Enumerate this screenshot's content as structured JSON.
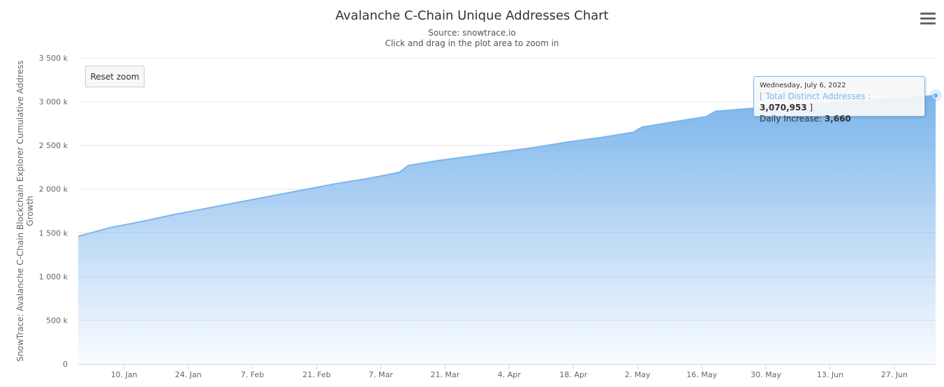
{
  "header": {
    "title": "Avalanche C-Chain Unique Addresses Chart",
    "source": "Source: snowtrace.io",
    "hint": "Click and drag in the plot area to zoom in"
  },
  "controls": {
    "reset_zoom_label": "Reset zoom",
    "menu_icon": "hamburger-menu-icon"
  },
  "colors": {
    "series": "#7cb5ec",
    "grid": "#e6e6e6"
  },
  "tooltip": {
    "date": "Wednesday, July 6, 2022",
    "open_bracket": "[ ",
    "series_label": "Total Distinct Addresses : ",
    "value": "3,070,953",
    "close_bracket": " ]",
    "daily_label": "Daily Increase: ",
    "daily_value": "3,660"
  },
  "chart_data": {
    "type": "area",
    "title": "Avalanche C-Chain Unique Addresses Chart",
    "subtitle": "Source: snowtrace.io",
    "xlabel": "",
    "ylabel": "SnowTrace: Avalanche C-Chain Blockchain Explorer Cumulative Address Growth",
    "ylim": [
      0,
      3500000
    ],
    "yticks": [
      0,
      500000,
      1000000,
      1500000,
      2000000,
      2500000,
      3000000,
      3500000
    ],
    "ytick_labels": [
      "0",
      "500 k",
      "1 000 k",
      "1 500 k",
      "2 000 k",
      "2 500 k",
      "3 000 k",
      "3 500 k"
    ],
    "xlim": [
      "2021-12-31",
      "2022-07-06"
    ],
    "xticks": [
      "2022-01-10",
      "2022-01-24",
      "2022-02-07",
      "2022-02-21",
      "2022-03-07",
      "2022-03-21",
      "2022-04-04",
      "2022-04-18",
      "2022-05-02",
      "2022-05-16",
      "2022-05-30",
      "2022-06-13",
      "2022-06-27"
    ],
    "xtick_labels": [
      "10. Jan",
      "24. Jan",
      "7. Feb",
      "21. Feb",
      "7. Mar",
      "21. Mar",
      "4. Apr",
      "18. Apr",
      "2. May",
      "16. May",
      "30. May",
      "13. Jun",
      "27. Jun"
    ],
    "grid": true,
    "legend": "none",
    "series": [
      {
        "name": "Total Distinct Addresses",
        "x": [
          "2021-12-31",
          "2022-01-07",
          "2022-01-14",
          "2022-01-21",
          "2022-01-28",
          "2022-02-04",
          "2022-02-11",
          "2022-02-18",
          "2022-02-25",
          "2022-03-04",
          "2022-03-11",
          "2022-03-13",
          "2022-03-20",
          "2022-03-27",
          "2022-04-03",
          "2022-04-10",
          "2022-04-17",
          "2022-04-24",
          "2022-05-01",
          "2022-05-03",
          "2022-05-10",
          "2022-05-17",
          "2022-05-19",
          "2022-05-26",
          "2022-06-02",
          "2022-06-09",
          "2022-06-16",
          "2022-06-23",
          "2022-06-30",
          "2022-07-06"
        ],
        "values": [
          1460000,
          1560000,
          1630000,
          1710000,
          1780000,
          1850000,
          1920000,
          1990000,
          2060000,
          2120000,
          2190000,
          2270000,
          2330000,
          2380000,
          2430000,
          2480000,
          2540000,
          2590000,
          2650000,
          2710000,
          2770000,
          2830000,
          2890000,
          2920000,
          2940000,
          2970000,
          2990000,
          3020000,
          3045000,
          3070953
        ]
      }
    ],
    "highlighted_point": {
      "x": "2022-07-06",
      "y": 3070953
    }
  }
}
